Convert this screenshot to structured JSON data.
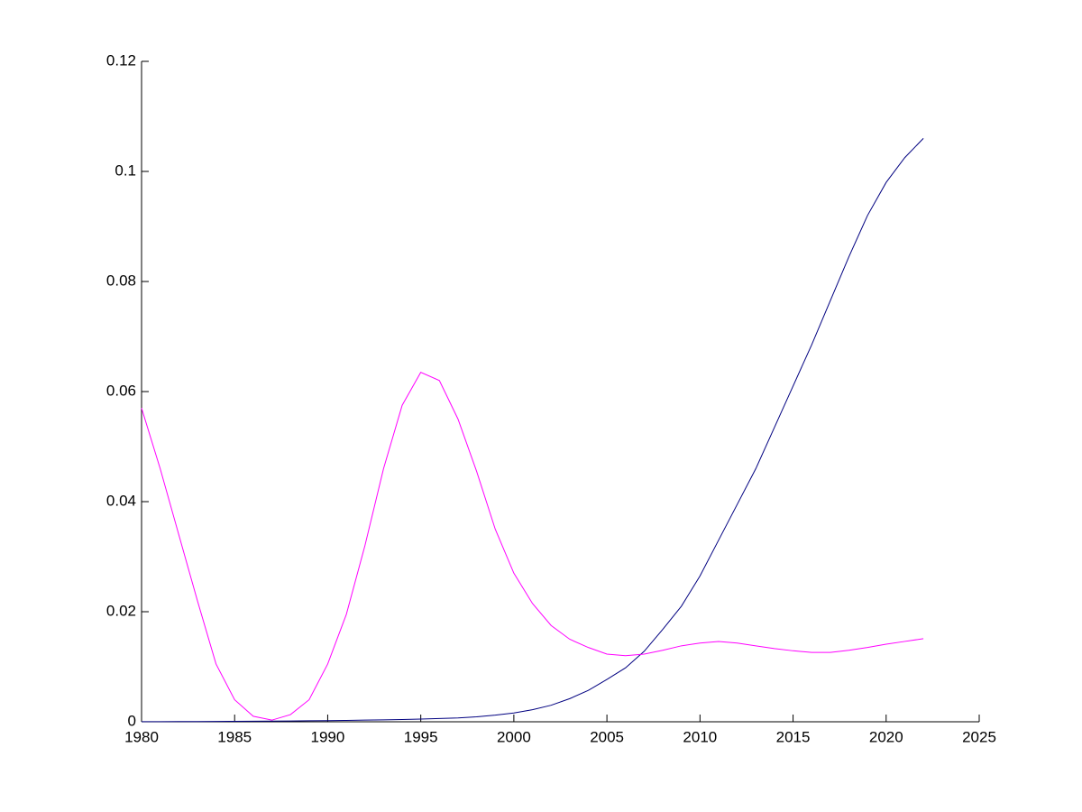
{
  "chart_data": {
    "type": "line",
    "x": [
      1980,
      1981,
      1982,
      1983,
      1984,
      1985,
      1986,
      1987,
      1988,
      1989,
      1990,
      1991,
      1992,
      1993,
      1994,
      1995,
      1996,
      1997,
      1998,
      1999,
      2000,
      2001,
      2002,
      2003,
      2004,
      2005,
      2006,
      2007,
      2008,
      2009,
      2010,
      2011,
      2012,
      2013,
      2014,
      2015,
      2016,
      2017,
      2018,
      2019,
      2020,
      2021,
      2022
    ],
    "series": [
      {
        "color": "#000080",
        "values": [
          2e-05,
          3e-05,
          4e-05,
          5e-05,
          6e-05,
          8e-05,
          0.0001,
          0.00012,
          0.00015,
          0.00018,
          0.0002,
          0.00025,
          0.0003,
          0.00035,
          0.0004,
          0.0005,
          0.0006,
          0.0007,
          0.0009,
          0.0012,
          0.0016,
          0.0022,
          0.003,
          0.0042,
          0.0057,
          0.0077,
          0.0098,
          0.0128,
          0.0168,
          0.021,
          0.0265,
          0.033,
          0.0395,
          0.046,
          0.0535,
          0.061,
          0.0685,
          0.0765,
          0.0845,
          0.092,
          0.098,
          0.1025,
          0.106
        ]
      },
      {
        "color": "#ff00ff",
        "values": [
          0.057,
          0.046,
          0.034,
          0.022,
          0.0105,
          0.004,
          0.001,
          0.0003,
          0.0013,
          0.004,
          0.0105,
          0.0195,
          0.032,
          0.046,
          0.0575,
          0.0635,
          0.062,
          0.055,
          0.0455,
          0.035,
          0.027,
          0.0215,
          0.0175,
          0.015,
          0.0135,
          0.0123,
          0.012,
          0.0123,
          0.013,
          0.0138,
          0.0143,
          0.0146,
          0.0143,
          0.0138,
          0.0133,
          0.0129,
          0.0126,
          0.0126,
          0.013,
          0.0135,
          0.0141,
          0.0146,
          0.0151
        ]
      }
    ],
    "xlim": [
      1980,
      2025
    ],
    "xticks": [
      1980,
      1985,
      1990,
      1995,
      2000,
      2005,
      2010,
      2015,
      2020,
      2025
    ],
    "ylim": [
      0,
      0.12
    ],
    "yticks": [
      0,
      0.02,
      0.04,
      0.06,
      0.08,
      0.1,
      0.12
    ]
  }
}
